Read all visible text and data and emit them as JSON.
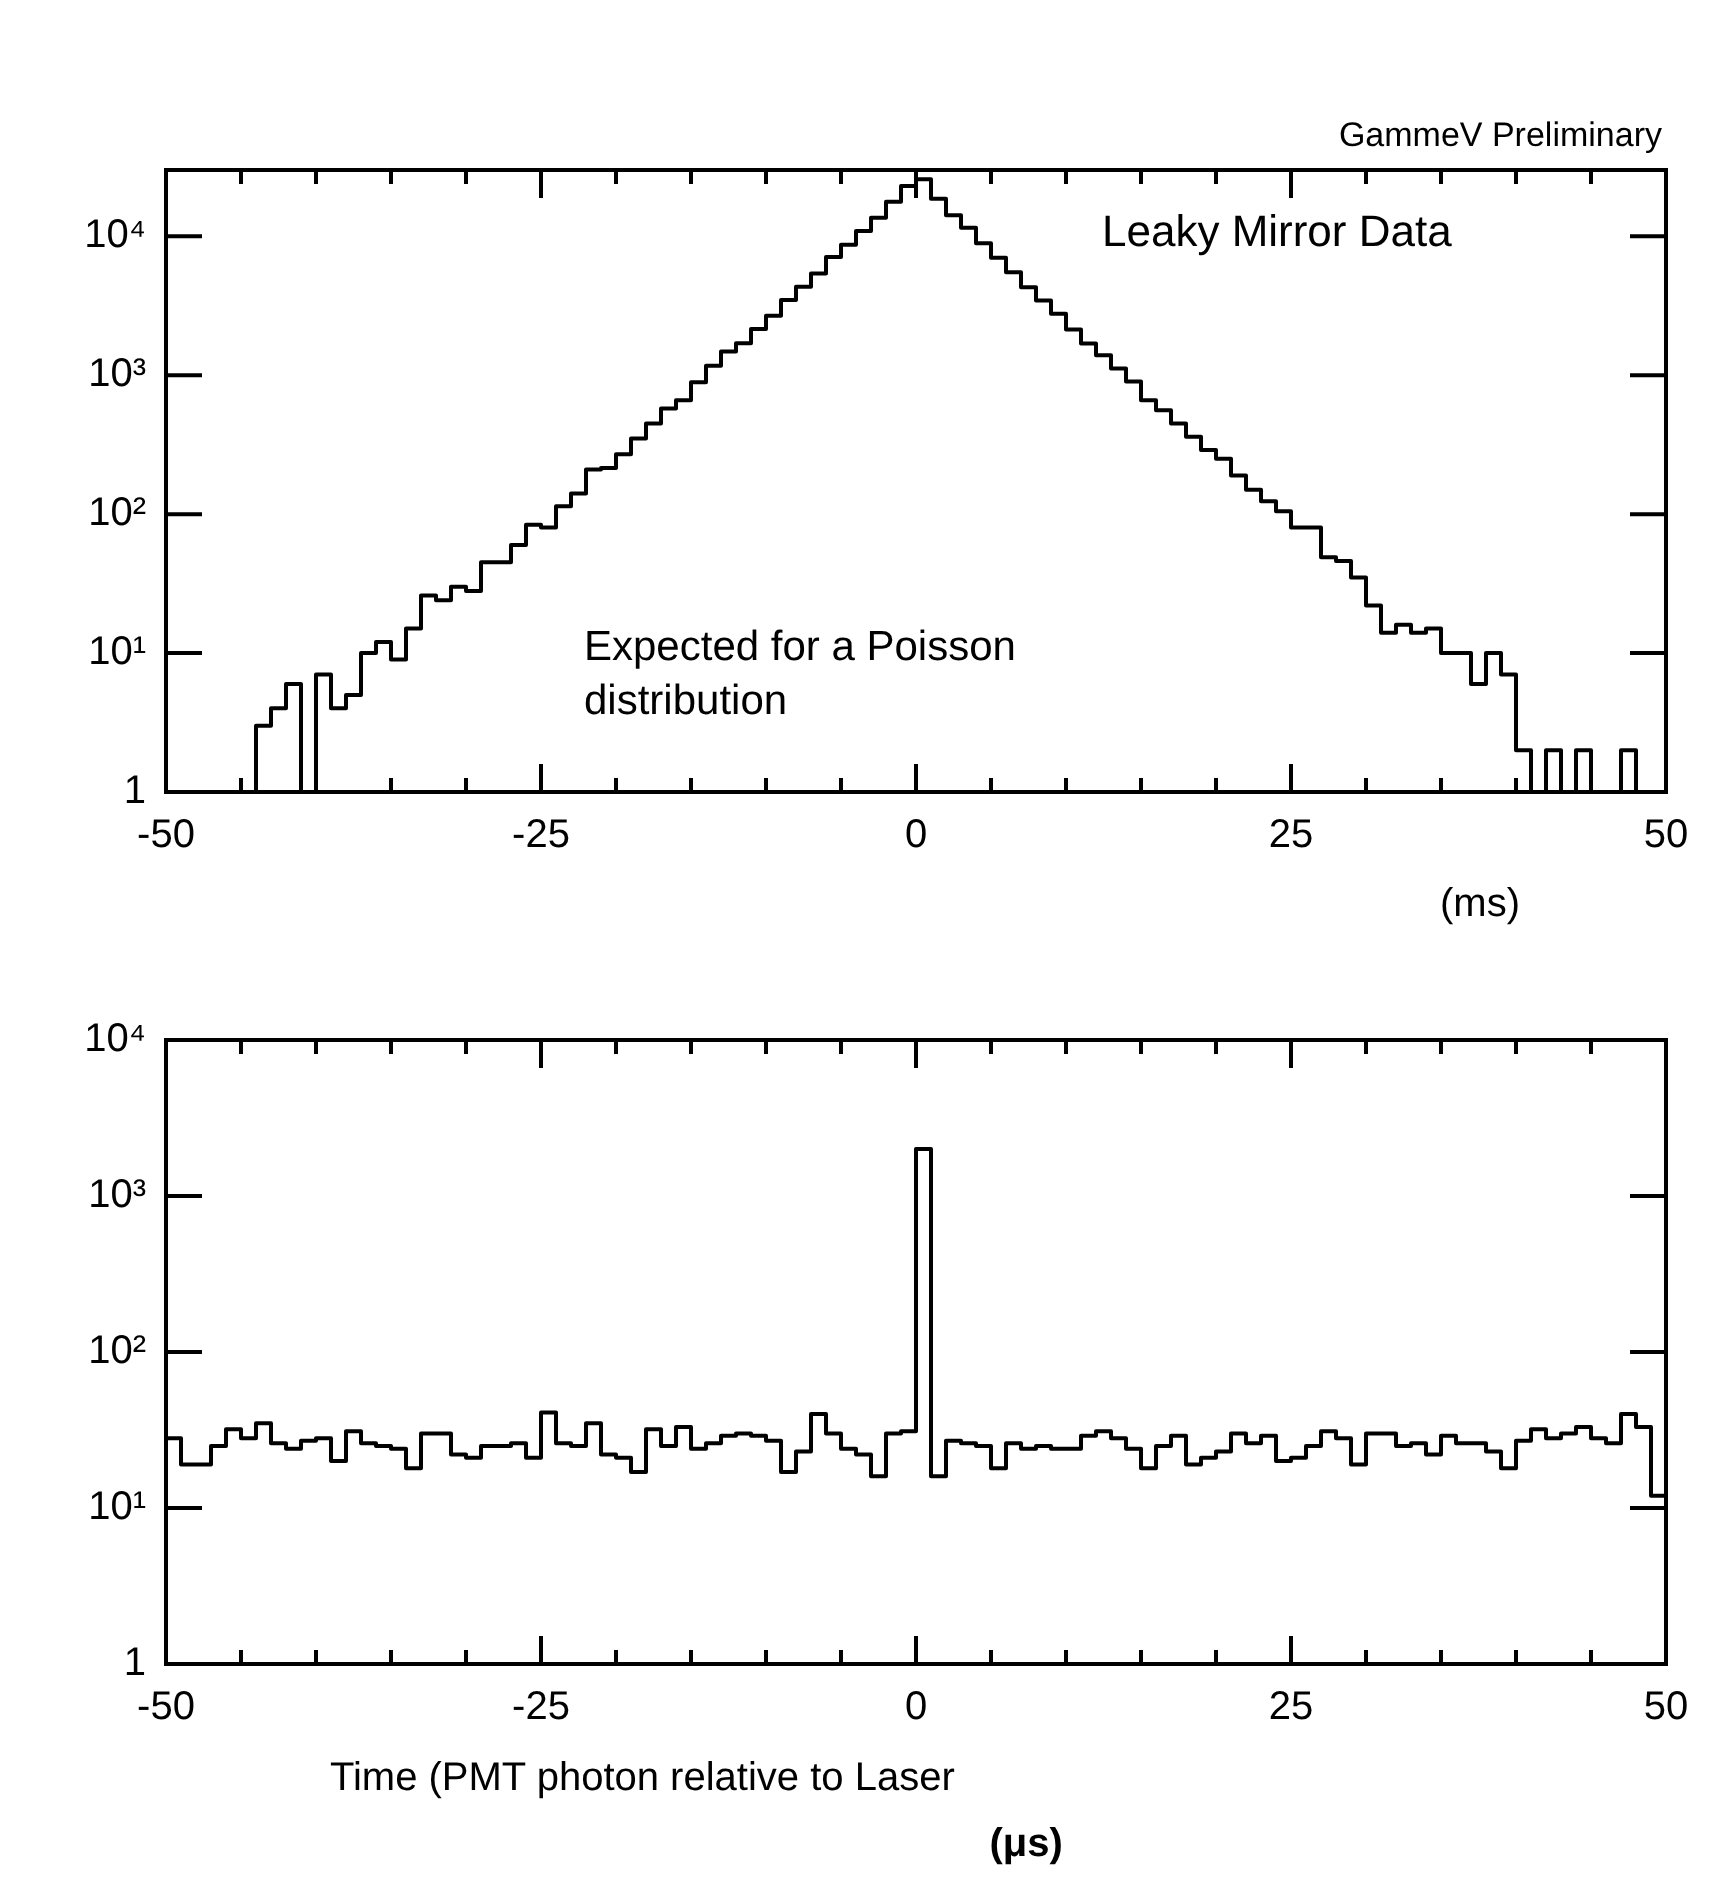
{
  "chart_data": [
    {
      "type": "histogram",
      "color": "#000000",
      "log": "y",
      "xlabel": "(ms)",
      "annotations": [
        "GammeV Preliminary",
        "Leaky Mirror Data",
        "Expected for a Poisson distribution"
      ],
      "bins": [
        -50,
        -49,
        -48,
        -47,
        -46,
        -45,
        -44,
        -43,
        -42,
        -41,
        -40,
        -39,
        -38,
        -37,
        -36,
        -35,
        -34,
        -33,
        -32,
        -31,
        -30,
        -29,
        -28,
        -27,
        -26,
        -25,
        -24,
        -23,
        -22,
        -21,
        -20,
        -19,
        -18,
        -17,
        -16,
        -15,
        -14,
        -13,
        -12,
        -11,
        -10,
        -9,
        -8,
        -7,
        -6,
        -5,
        -4,
        -3,
        -2,
        -1,
        0,
        1,
        2,
        3,
        4,
        5,
        6,
        7,
        8,
        9,
        10,
        11,
        12,
        13,
        14,
        15,
        16,
        17,
        18,
        19,
        20,
        21,
        22,
        23,
        24,
        25,
        26,
        27,
        28,
        29,
        30,
        31,
        32,
        33,
        34,
        35,
        36,
        37,
        38,
        39,
        40,
        41,
        42,
        43,
        44,
        45,
        46,
        47,
        48,
        49,
        50
      ],
      "values": [
        1,
        1,
        1,
        1,
        1,
        1,
        3,
        4,
        6,
        1,
        7,
        4,
        5,
        10,
        12,
        9,
        15,
        26,
        24,
        30,
        28,
        45,
        45,
        60,
        84,
        80,
        114,
        141,
        210,
        215,
        270,
        350,
        450,
        575,
        660,
        890,
        1170,
        1480,
        1700,
        2150,
        2680,
        3480,
        4340,
        5400,
        7100,
        8700,
        10900,
        13600,
        17700,
        23000,
        25700,
        18600,
        14200,
        11500,
        8900,
        7000,
        5500,
        4300,
        3450,
        2770,
        2130,
        1690,
        1390,
        1120,
        900,
        660,
        560,
        450,
        360,
        290,
        250,
        190,
        150,
        124,
        105,
        80,
        80,
        49,
        46,
        35,
        22,
        14,
        16,
        14,
        15,
        10,
        10,
        6,
        10,
        7,
        2,
        1,
        2,
        1,
        2,
        1,
        1,
        2,
        1,
        1
      ],
      "xlim": [
        -50,
        50
      ],
      "xticks": [
        -50,
        {
          "value": -45,
          "label": null
        },
        {
          "value": -40,
          "label": null
        },
        {
          "value": -35,
          "label": null
        },
        {
          "value": -30,
          "label": null
        },
        -25,
        {
          "value": -20,
          "label": null
        },
        {
          "value": -15,
          "label": null
        },
        {
          "value": -10,
          "label": null
        },
        {
          "value": -5,
          "label": null
        },
        0,
        {
          "value": 5,
          "label": null
        },
        {
          "value": 10,
          "label": null
        },
        {
          "value": 15,
          "label": null
        },
        {
          "value": 20,
          "label": null
        },
        25,
        {
          "value": 30,
          "label": null
        },
        {
          "value": 35,
          "label": null
        },
        {
          "value": 40,
          "label": null
        },
        {
          "value": 45,
          "label": null
        },
        50
      ],
      "ylim": [
        1,
        30000
      ],
      "yticks": [
        1,
        {
          "value": 10,
          "label": "10¹"
        },
        {
          "value": 100,
          "label": "10²"
        },
        {
          "value": 1000,
          "label": "10³"
        },
        {
          "value": 10000,
          "label": "10⁴"
        }
      ]
    },
    {
      "type": "histogram",
      "color": "#000000",
      "log": "y",
      "xlabel": "Time (PMT photon relative to Laser",
      "annotations": [
        "(μs)"
      ],
      "bins": [
        -50,
        -49,
        -48,
        -47,
        -46,
        -45,
        -44,
        -43,
        -42,
        -41,
        -40,
        -39,
        -38,
        -37,
        -36,
        -35,
        -34,
        -33,
        -32,
        -31,
        -30,
        -29,
        -28,
        -27,
        -26,
        -25,
        -24,
        -23,
        -22,
        -21,
        -20,
        -19,
        -18,
        -17,
        -16,
        -15,
        -14,
        -13,
        -12,
        -11,
        -10,
        -9,
        -8,
        -7,
        -6,
        -5,
        -4,
        -3,
        -2,
        -1,
        0,
        1,
        2,
        3,
        4,
        5,
        6,
        7,
        8,
        9,
        10,
        11,
        12,
        13,
        14,
        15,
        16,
        17,
        18,
        19,
        20,
        21,
        22,
        23,
        24,
        25,
        26,
        27,
        28,
        29,
        30,
        31,
        32,
        33,
        34,
        35,
        36,
        37,
        38,
        39,
        40,
        41,
        42,
        43,
        44,
        45,
        46,
        47,
        48,
        49,
        50
      ],
      "values": [
        28,
        19,
        19,
        25,
        32,
        28,
        35,
        26,
        24,
        27,
        28,
        20,
        31,
        26,
        25,
        24,
        18,
        30,
        30,
        22,
        21,
        25,
        25,
        26,
        21,
        41,
        26,
        25,
        35,
        22,
        21,
        17,
        32,
        25,
        33,
        24,
        26,
        29,
        30,
        29,
        27,
        17,
        23,
        40,
        30,
        24,
        22,
        16,
        30,
        31,
        2000,
        16,
        27,
        26,
        25,
        18,
        26,
        24,
        25,
        24,
        24,
        29,
        31,
        28,
        24,
        18,
        25,
        29,
        19,
        21,
        23,
        30,
        26,
        29,
        20,
        21,
        25,
        31,
        28,
        19,
        30,
        30,
        25,
        26,
        22,
        29,
        26,
        26,
        23,
        18,
        27,
        32,
        28,
        30,
        33,
        28,
        26,
        40,
        33,
        12
      ],
      "xlim": [
        -50,
        50
      ],
      "xticks": [
        -50,
        {
          "value": -45,
          "label": null
        },
        {
          "value": -40,
          "label": null
        },
        {
          "value": -35,
          "label": null
        },
        {
          "value": -30,
          "label": null
        },
        -25,
        {
          "value": -20,
          "label": null
        },
        {
          "value": -15,
          "label": null
        },
        {
          "value": -10,
          "label": null
        },
        {
          "value": -5,
          "label": null
        },
        0,
        {
          "value": 5,
          "label": null
        },
        {
          "value": 10,
          "label": null
        },
        {
          "value": 15,
          "label": null
        },
        {
          "value": 20,
          "label": null
        },
        25,
        {
          "value": 30,
          "label": null
        },
        {
          "value": 35,
          "label": null
        },
        {
          "value": 40,
          "label": null
        },
        {
          "value": 45,
          "label": null
        },
        50
      ],
      "ylim": [
        1,
        10000
      ],
      "yticks": [
        1,
        {
          "value": 10,
          "label": "10¹"
        },
        {
          "value": 100,
          "label": "10²"
        },
        {
          "value": 1000,
          "label": "10³"
        },
        {
          "value": 10000,
          "label": "10⁴"
        }
      ]
    }
  ]
}
